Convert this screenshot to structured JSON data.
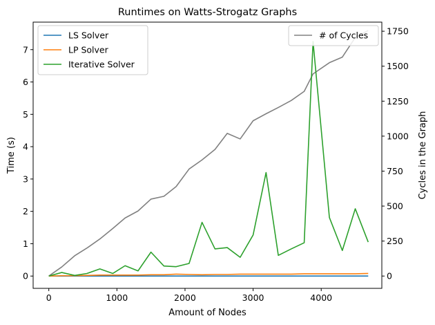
{
  "chart_data": {
    "type": "line",
    "title": "Runtimes on Watts-Strogatz Graphs",
    "xlabel": "Amount of Nodes",
    "ylabel": "Time (s)",
    "ylabel_right": "Cycles in the Graph",
    "xlim": [
      -230,
      4890
    ],
    "ylim": [
      -0.38,
      7.85
    ],
    "ylim_right": [
      -88,
      1815
    ],
    "x_ticks": [
      0,
      1000,
      2000,
      3000,
      4000
    ],
    "y_ticks": [
      0,
      1,
      2,
      3,
      4,
      5,
      6,
      7
    ],
    "y_ticks_right": [
      0,
      250,
      500,
      750,
      1000,
      1250,
      1500,
      1750
    ],
    "grid": false,
    "x": [
      0,
      190,
      380,
      560,
      750,
      940,
      1120,
      1310,
      1500,
      1690,
      1870,
      2060,
      2250,
      2440,
      2620,
      2810,
      3000,
      3190,
      3370,
      3560,
      3750,
      3880,
      4120,
      4310,
      4500,
      4690
    ],
    "series": [
      {
        "name": "LS Solver",
        "axis": "left",
        "color": "#1f77b4",
        "values": [
          0.0,
          0.0,
          0.0,
          0.0,
          0.0,
          0.0,
          0.0,
          0.0,
          0.0,
          0.0,
          0.0,
          0.0,
          0.0,
          0.0,
          0.0,
          0.0,
          0.0,
          0.0,
          0.0,
          0.0,
          0.0,
          0.0,
          0.0,
          0.0,
          0.0,
          0.0
        ]
      },
      {
        "name": "LP Solver",
        "axis": "left",
        "color": "#ff7f0e",
        "values": [
          0.0,
          0.01,
          0.01,
          0.02,
          0.03,
          0.03,
          0.03,
          0.03,
          0.04,
          0.04,
          0.06,
          0.05,
          0.04,
          0.05,
          0.05,
          0.06,
          0.06,
          0.06,
          0.06,
          0.06,
          0.07,
          0.07,
          0.07,
          0.07,
          0.07,
          0.08
        ]
      },
      {
        "name": "Iterative Solver",
        "axis": "left",
        "color": "#2ca02c",
        "values": [
          0.0,
          0.11,
          0.02,
          0.08,
          0.22,
          0.08,
          0.32,
          0.16,
          0.74,
          0.31,
          0.29,
          0.39,
          1.66,
          0.84,
          0.88,
          0.58,
          1.27,
          3.2,
          0.64,
          0.84,
          1.03,
          7.25,
          1.81,
          0.79,
          2.08,
          1.05
        ]
      },
      {
        "name": "# of Cycles",
        "axis": "right",
        "color": "#808080",
        "values": [
          0,
          65,
          145,
          200,
          265,
          340,
          415,
          465,
          550,
          570,
          640,
          765,
          830,
          905,
          1020,
          980,
          1110,
          1160,
          1205,
          1255,
          1320,
          1445,
          1525,
          1565,
          1705,
          1755
        ]
      }
    ],
    "legend_left": {
      "placement": "upper left",
      "entries": [
        "LS Solver",
        "LP Solver",
        "Iterative Solver"
      ]
    },
    "legend_right": {
      "placement": "upper right",
      "entries": [
        "# of Cycles"
      ]
    }
  }
}
